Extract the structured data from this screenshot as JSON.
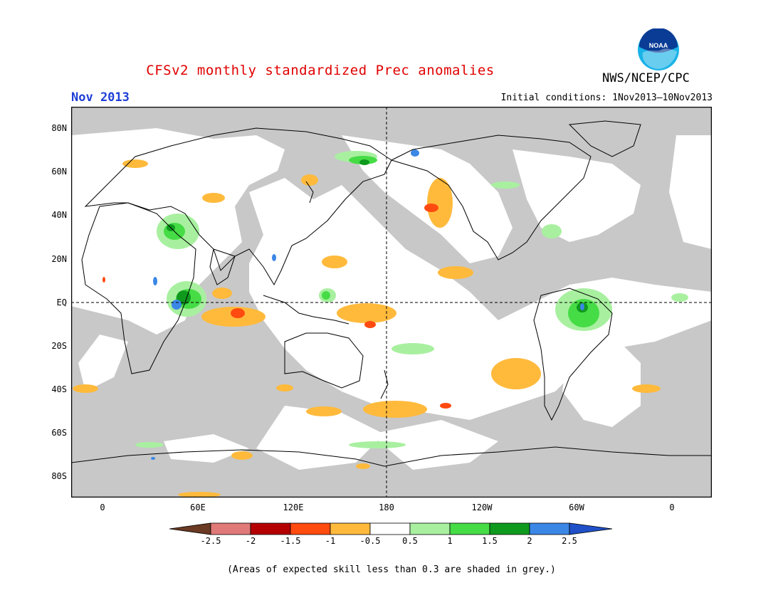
{
  "header": {
    "title": "CFSv2 monthly standardized Prec anomalies",
    "month": "Nov 2013",
    "initial_conditions": "Initial conditions: 1Nov2013–10Nov2013",
    "agency": "NWS/NCEP/CPC",
    "logo_text": "NOAA"
  },
  "map": {
    "lat_labels": [
      "80N",
      "60N",
      "40N",
      "20N",
      "EQ",
      "20S",
      "40S",
      "60S",
      "80S"
    ],
    "lon_labels": [
      "0",
      "60E",
      "120E",
      "180",
      "120W",
      "60W",
      "0"
    ]
  },
  "colorbar": {
    "labels": [
      "-2.5",
      "-2",
      "-1.5",
      "-1",
      "-0.5",
      "0.5",
      "1",
      "1.5",
      "2",
      "2.5"
    ],
    "colors": {
      "lt_-2.5": "#6b3a22",
      "-2.5_-2": "#e07a78",
      "-2_-1.5": "#b40000",
      "-1.5_-1": "#ff4a10",
      "-1_-0.5": "#ffba3c",
      "-0.5_0.5": "#ffffff",
      "0.5_1": "#a8f0a0",
      "1_1.5": "#46dc46",
      "1.5_2": "#0f9a1e",
      "2_2.5": "#3a87e6",
      "gt_2.5": "#1f50c8"
    }
  },
  "footer": {
    "note": "(Areas of expected skill less than 0.3 are shaded in grey.)"
  }
}
